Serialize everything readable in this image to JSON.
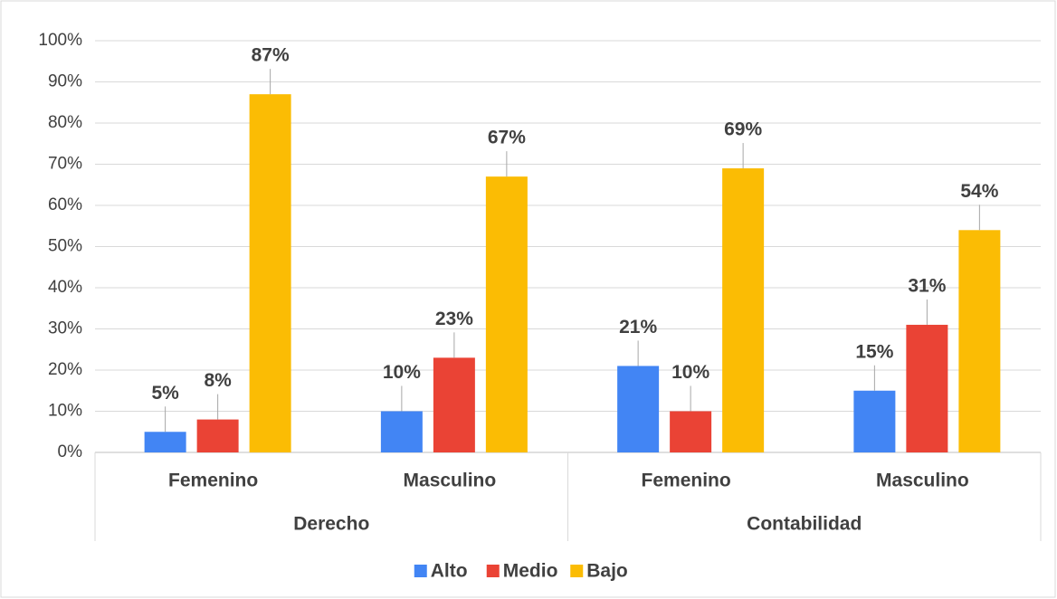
{
  "chart_data": {
    "type": "bar",
    "groups": [
      "Derecho",
      "Contabilidad"
    ],
    "categories": [
      "Femenino",
      "Masculino",
      "Femenino",
      "Masculino"
    ],
    "series": [
      {
        "name": "Alto",
        "color": "#4285f4",
        "values": [
          5,
          10,
          21,
          15
        ],
        "value_labels": [
          "5%",
          "10%",
          "21%",
          "15%"
        ]
      },
      {
        "name": "Medio",
        "color": "#ea4335",
        "values": [
          8,
          23,
          10,
          31
        ],
        "value_labels": [
          "8%",
          "23%",
          "10%",
          "31%"
        ]
      },
      {
        "name": "Bajo",
        "color": "#fbbc04",
        "values": [
          87,
          67,
          69,
          54
        ],
        "value_labels": [
          "87%",
          "67%",
          "69%",
          "54%"
        ]
      }
    ],
    "ylim": [
      0,
      100
    ],
    "yticks": [
      {
        "value": 0,
        "label": "0%"
      },
      {
        "value": 10,
        "label": "10%"
      },
      {
        "value": 20,
        "label": "20%"
      },
      {
        "value": 30,
        "label": "30%"
      },
      {
        "value": 40,
        "label": "40%"
      },
      {
        "value": 50,
        "label": "50%"
      },
      {
        "value": 60,
        "label": "60%"
      },
      {
        "value": 70,
        "label": "70%"
      },
      {
        "value": 80,
        "label": "80%"
      },
      {
        "value": 90,
        "label": "90%"
      },
      {
        "value": 100,
        "label": "100%"
      }
    ],
    "grid": true,
    "legend": "bottom"
  }
}
